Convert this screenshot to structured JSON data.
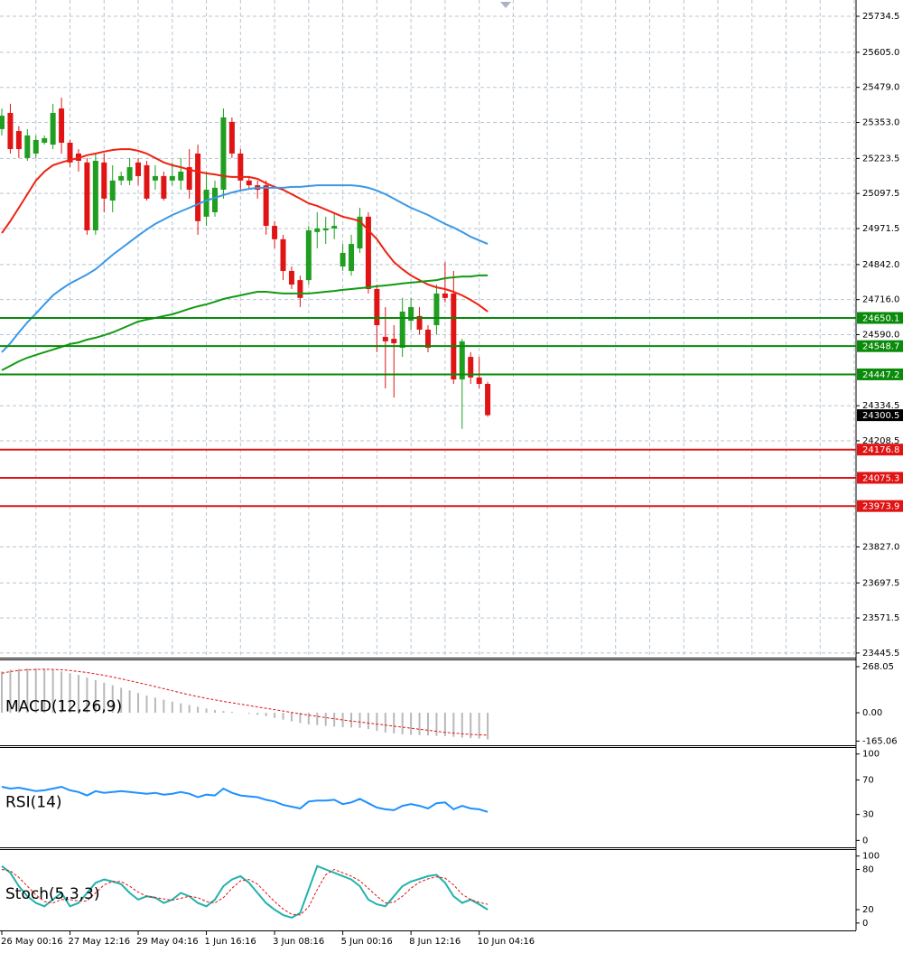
{
  "chart_data": [
    {
      "type": "candlestick",
      "categories": [
        "26 May 00:16",
        null,
        null,
        null,
        null,
        null,
        null,
        null,
        "27 May 12:16",
        null,
        null,
        null,
        null,
        null,
        null,
        null,
        "29 May 04:16",
        null,
        null,
        null,
        null,
        null,
        null,
        null,
        "1 Jun 16:16",
        null,
        null,
        null,
        null,
        null,
        null,
        null,
        "3 Jun 08:16",
        null,
        null,
        null,
        null,
        null,
        null,
        null,
        "5 Jun 00:16",
        null,
        null,
        null,
        null,
        null,
        null,
        null,
        "8 Jun 12:16",
        null,
        null,
        null,
        null,
        null,
        null,
        null,
        "10 Jun 04:16",
        null
      ],
      "open": [
        25329,
        25387,
        25322,
        25225,
        25241,
        25280,
        25273,
        25403,
        25280,
        25241,
        25209,
        24965,
        25209,
        25072,
        25144,
        25144,
        25209,
        25199,
        25144,
        25160,
        25144,
        25144,
        25192,
        25241,
        25014,
        25030,
        25111,
        25355,
        25241,
        25144,
        25127,
        25127,
        24981,
        24933,
        24819,
        24786,
        24786,
        24959,
        24965,
        24972,
        24835,
        24819,
        24900,
        25014,
        24754,
        24582,
        24575,
        24543,
        24640,
        24657,
        24608,
        24624,
        24738,
        24738,
        24429,
        24510,
        24436,
        24413
      ],
      "high": [
        25403,
        25420,
        25340,
        25329,
        25306,
        25306,
        25420,
        25442,
        25290,
        25257,
        25225,
        25241,
        25241,
        25199,
        25176,
        25225,
        25225,
        25215,
        25199,
        25176,
        25209,
        25225,
        25257,
        25273,
        25176,
        25144,
        25403,
        25371,
        25257,
        25160,
        25144,
        25144,
        24998,
        24949,
        24835,
        24802,
        24981,
        25030,
        25014,
        25030,
        24916,
        24949,
        25046,
        25030,
        24770,
        24689,
        24624,
        24722,
        24722,
        24689,
        24624,
        24770,
        24851,
        24819,
        24575,
        24527,
        24510,
        24420
      ],
      "low": [
        25306,
        25241,
        25225,
        25215,
        25225,
        25273,
        25257,
        25241,
        25192,
        25176,
        24949,
        24949,
        25030,
        25030,
        25127,
        25127,
        25127,
        25072,
        25111,
        25072,
        25127,
        25111,
        25079,
        24949,
        24981,
        25014,
        25079,
        25225,
        25111,
        25111,
        25079,
        24949,
        24900,
        24786,
        24754,
        24689,
        24770,
        24900,
        24916,
        24933,
        24819,
        24802,
        24884,
        24738,
        24527,
        24397,
        24364,
        24510,
        24608,
        24591,
        24527,
        24591,
        24706,
        24413,
        24251,
        24413,
        24397,
        24295
      ],
      "close": [
        25377,
        25257,
        25257,
        25306,
        25290,
        25296,
        25387,
        25280,
        25209,
        25215,
        24965,
        25215,
        25079,
        25144,
        25160,
        25192,
        25160,
        25079,
        25160,
        25079,
        25160,
        25176,
        25111,
        24998,
        25111,
        25118,
        25371,
        25241,
        25144,
        25127,
        25111,
        24981,
        24933,
        24819,
        24770,
        24722,
        24965,
        24972,
        24972,
        24981,
        24884,
        24916,
        25014,
        24754,
        24624,
        24566,
        24559,
        24673,
        24689,
        24608,
        24543,
        24738,
        24722,
        24429,
        24566,
        24436,
        24413,
        24300.5
      ],
      "up_color": "#1f9e1f",
      "down_color": "#e01414",
      "series": [
        {
          "color": "#ee2211",
          "values": [
            24955,
            24998,
            25046,
            25095,
            25144,
            25176,
            25199,
            25209,
            25218,
            25225,
            25235,
            25241,
            25248,
            25254,
            25257,
            25257,
            25251,
            25241,
            25225,
            25209,
            25199,
            25192,
            25183,
            25176,
            25170,
            25166,
            25160,
            25157,
            25157,
            25157,
            25150,
            25134,
            25121,
            25111,
            25095,
            25079,
            25062,
            25053,
            25040,
            25027,
            25014,
            25007,
            24998,
            24965,
            24933,
            24890,
            24851,
            24825,
            24803,
            24786,
            24770,
            24760,
            24754,
            24744,
            24731,
            24715,
            24696,
            24673
          ]
        },
        {
          "color": "#3b98e6",
          "values": [
            24527,
            24559,
            24598,
            24634,
            24666,
            24699,
            24731,
            24754,
            24774,
            24790,
            24806,
            24825,
            24851,
            24877,
            24900,
            24923,
            24946,
            24968,
            24988,
            25004,
            25020,
            25033,
            25046,
            25059,
            25072,
            25082,
            25092,
            25101,
            25108,
            25114,
            25118,
            25118,
            25118,
            25118,
            25121,
            25121,
            25124,
            25127,
            25127,
            25127,
            25127,
            25127,
            25124,
            25118,
            25108,
            25095,
            25079,
            25062,
            25046,
            25033,
            25020,
            25004,
            24988,
            24975,
            24959,
            24942,
            24929,
            24916
          ]
        },
        {
          "color": "#139a13",
          "values": [
            24462,
            24478,
            24494,
            24507,
            24517,
            24527,
            24536,
            24546,
            24556,
            24562,
            24572,
            24579,
            24588,
            24598,
            24611,
            24624,
            24637,
            24644,
            24650,
            24657,
            24663,
            24673,
            24683,
            24692,
            24699,
            24708,
            24718,
            24725,
            24731,
            24738,
            24744,
            24744,
            24741,
            24738,
            24738,
            24738,
            24738,
            24741,
            24744,
            24747,
            24751,
            24754,
            24757,
            24760,
            24764,
            24767,
            24770,
            24774,
            24777,
            24780,
            24783,
            24786,
            24793,
            24796,
            24799,
            24799,
            24803,
            24803
          ]
        }
      ],
      "levels": [
        {
          "value": 24650.1,
          "color": "#0a8a0a"
        },
        {
          "value": 24548.7,
          "color": "#0a8a0a"
        },
        {
          "value": 24447.2,
          "color": "#0a8a0a"
        },
        {
          "value": 24300.5,
          "color": "#000000"
        },
        {
          "value": 24176.8,
          "color": "#e01414"
        },
        {
          "value": 24075.3,
          "color": "#e01414"
        },
        {
          "value": 23973.9,
          "color": "#e01414"
        }
      ],
      "ylim": [
        23429,
        25793
      ],
      "yticks": [
        25734.5,
        {
          "value": 25605,
          "label": "25605.0"
        },
        {
          "value": 25479,
          "label": "25479.0"
        },
        {
          "value": 25353,
          "label": "25353.0"
        },
        25223.5,
        25097.5,
        24971.5,
        {
          "value": 24842,
          "label": "24842.0"
        },
        {
          "value": 24716,
          "label": "24716.0"
        },
        {
          "value": 24590,
          "label": "24590.0"
        },
        24334.5,
        24208.5,
        {
          "value": 23827,
          "label": "23827.0"
        },
        23697.5,
        23571.5,
        23445.5
      ],
      "grid": true
    },
    {
      "type": "macd",
      "title": "MACD(12,26,9)",
      "series": [
        {
          "color": "#b8b8b8",
          "style": "bar",
          "values": [
            240,
            250,
            255,
            258,
            258,
            255,
            250,
            240,
            230,
            220,
            205,
            190,
            175,
            160,
            145,
            130,
            115,
            100,
            88,
            76,
            65,
            55,
            45,
            35,
            25,
            15,
            10,
            5,
            0,
            -5,
            -12,
            -20,
            -30,
            -40,
            -50,
            -60,
            -68,
            -72,
            -76,
            -80,
            -84,
            -86,
            -88,
            -95,
            -105,
            -115,
            -120,
            -125,
            -128,
            -130,
            -132,
            -134,
            -136,
            -140,
            -145,
            -148,
            -150,
            -155
          ]
        },
        {
          "color": "#e01414",
          "style": "dotted",
          "values": [
            230,
            240,
            246,
            250,
            252,
            253,
            252,
            250,
            246,
            240,
            234,
            226,
            218,
            208,
            198,
            186,
            175,
            164,
            152,
            140,
            128,
            116,
            105,
            94,
            84,
            75,
            66,
            58,
            50,
            42,
            34,
            26,
            18,
            10,
            2,
            -6,
            -14,
            -21,
            -28,
            -35,
            -42,
            -48,
            -54,
            -60,
            -66,
            -72,
            -78,
            -84,
            -90,
            -96,
            -102,
            -108,
            -114,
            -118,
            -122,
            -126,
            -128,
            -130
          ]
        }
      ],
      "ylim": [
        -189,
        305
      ],
      "yticks": [
        268.05,
        {
          "value": 0,
          "label": "0.00"
        },
        -165.06
      ]
    },
    {
      "type": "line",
      "title": "RSI(14)",
      "series": [
        {
          "color": "#1e90ff",
          "values": [
            62,
            60,
            61,
            59,
            57,
            58,
            60,
            62,
            58,
            56,
            52,
            57,
            55,
            56,
            57,
            56,
            55,
            54,
            55,
            53,
            54,
            56,
            54,
            50,
            53,
            52,
            60,
            55,
            52,
            51,
            50,
            47,
            45,
            41,
            39,
            37,
            45,
            46,
            46,
            47,
            42,
            44,
            48,
            43,
            38,
            36,
            35,
            40,
            42,
            40,
            37,
            43,
            44,
            36,
            40,
            37,
            36,
            33
          ]
        }
      ],
      "ylim": [
        -8,
        107
      ],
      "yticks": [
        100,
        70,
        30,
        0
      ]
    },
    {
      "type": "line",
      "title": "Stoch(5,3,3)",
      "series": [
        {
          "color": "#20b2aa",
          "values": [
            85,
            75,
            55,
            40,
            30,
            25,
            35,
            45,
            25,
            30,
            45,
            60,
            65,
            62,
            58,
            45,
            35,
            40,
            38,
            30,
            35,
            45,
            40,
            30,
            25,
            35,
            55,
            65,
            70,
            60,
            45,
            30,
            20,
            12,
            8,
            15,
            50,
            85,
            80,
            75,
            70,
            65,
            55,
            35,
            28,
            25,
            40,
            55,
            62,
            66,
            70,
            72,
            60,
            40,
            30,
            35,
            28,
            20
          ]
        },
        {
          "color": "#e01414",
          "style": "dotted",
          "values": [
            80,
            78,
            68,
            55,
            42,
            32,
            30,
            35,
            35,
            33,
            33,
            45,
            57,
            62,
            62,
            55,
            46,
            40,
            38,
            36,
            34,
            37,
            40,
            38,
            32,
            30,
            38,
            52,
            63,
            65,
            58,
            45,
            32,
            21,
            13,
            12,
            24,
            50,
            72,
            80,
            75,
            70,
            63,
            52,
            40,
            30,
            31,
            40,
            52,
            61,
            66,
            69,
            67,
            57,
            43,
            35,
            31,
            28
          ]
        }
      ],
      "ylim": [
        -11,
        109
      ],
      "yticks": [
        100,
        80,
        20,
        0
      ]
    }
  ]
}
